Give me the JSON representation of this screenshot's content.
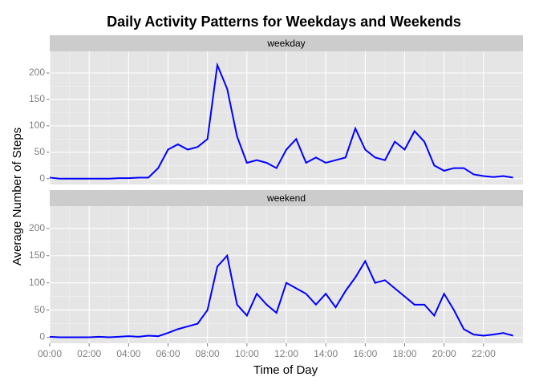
{
  "chart_data": {
    "type": "line",
    "title": "Daily Activity Patterns for Weekdays and Weekends",
    "x_label": "Time of Day",
    "y_label": "Average Number of Steps",
    "grid": true,
    "x": [
      0,
      0.5,
      1,
      1.5,
      2,
      2.5,
      3,
      3.5,
      4,
      4.5,
      5,
      5.5,
      6,
      6.5,
      7,
      7.5,
      8,
      8.5,
      9,
      9.5,
      10,
      10.5,
      11,
      11.5,
      12,
      12.5,
      13,
      13.5,
      14,
      14.5,
      15,
      15.5,
      16,
      16.5,
      17,
      17.5,
      18,
      18.5,
      19,
      19.5,
      20,
      20.5,
      21,
      21.5,
      22,
      22.5,
      23,
      23.5
    ],
    "xlim": [
      0,
      24
    ],
    "xticks": [
      {
        "value": 0,
        "label": "00:00"
      },
      {
        "value": 2,
        "label": "02:00"
      },
      {
        "value": 4,
        "label": "04:00"
      },
      {
        "value": 6,
        "label": "06:00"
      },
      {
        "value": 8,
        "label": "08:00"
      },
      {
        "value": 10,
        "label": "10:00"
      },
      {
        "value": 12,
        "label": "12:00"
      },
      {
        "value": 14,
        "label": "14:00"
      },
      {
        "value": 16,
        "label": "16:00"
      },
      {
        "value": 18,
        "label": "18:00"
      },
      {
        "value": 20,
        "label": "20:00"
      },
      {
        "value": 22,
        "label": "22:00"
      }
    ],
    "ylim": [
      -11,
      241
    ],
    "yticks": [
      0,
      50,
      100,
      150,
      200
    ],
    "series": [
      {
        "name": "weekday",
        "color": "#0000ff",
        "values": [
          2,
          0,
          0,
          0,
          0,
          0,
          0,
          1,
          1,
          2,
          2,
          20,
          55,
          65,
          55,
          60,
          75,
          215,
          170,
          80,
          30,
          35,
          30,
          20,
          55,
          75,
          30,
          40,
          30,
          35,
          40,
          95,
          55,
          40,
          35,
          70,
          55,
          90,
          70,
          25,
          15,
          20,
          20,
          8,
          5,
          3,
          5,
          2
        ]
      },
      {
        "name": "weekend",
        "color": "#0000ff",
        "values": [
          1,
          0,
          0,
          0,
          0,
          1,
          0,
          1,
          2,
          1,
          3,
          2,
          8,
          15,
          20,
          25,
          50,
          130,
          150,
          60,
          40,
          80,
          60,
          45,
          100,
          90,
          80,
          60,
          80,
          55,
          85,
          110,
          140,
          100,
          105,
          90,
          75,
          60,
          60,
          40,
          80,
          50,
          15,
          5,
          3,
          5,
          8,
          3
        ]
      }
    ]
  }
}
